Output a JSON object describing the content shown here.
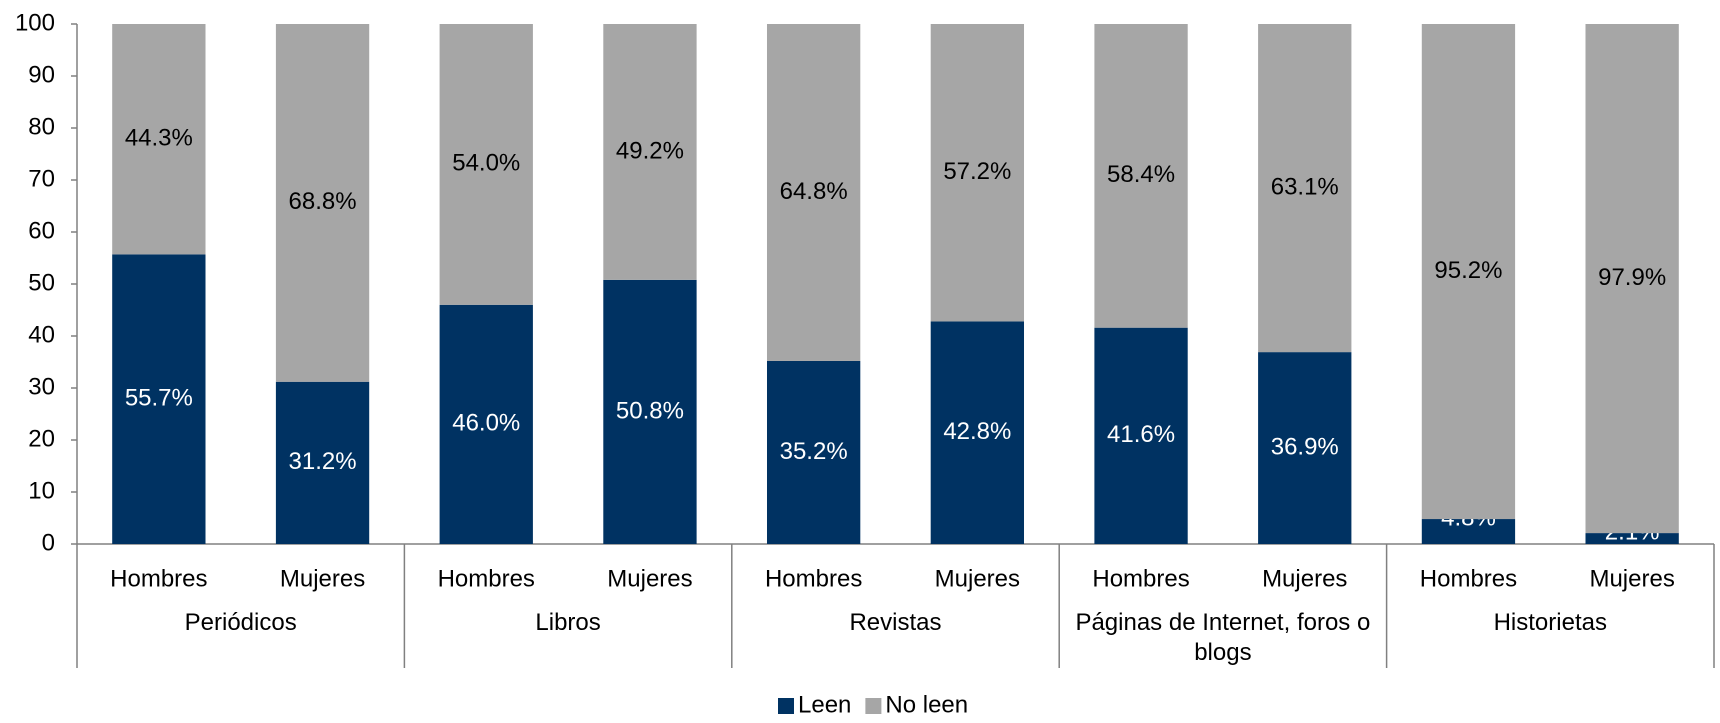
{
  "chart_data": {
    "type": "stacked_bar",
    "categories": [
      "Hombres",
      "Mujeres",
      "Hombres",
      "Mujeres",
      "Hombres",
      "Mujeres",
      "Hombres",
      "Mujeres",
      "Hombres",
      "Mujeres"
    ],
    "groups": [
      "Periódicos",
      "Libros",
      "Revistas",
      "Páginas de Internet, foros o blogs",
      "Historietas"
    ],
    "series": [
      {
        "name": "Leen",
        "color": "#003262",
        "label_color": "#ffffff",
        "values": [
          55.7,
          31.2,
          46.0,
          50.8,
          35.2,
          42.8,
          41.6,
          36.9,
          4.8,
          2.1
        ],
        "value_labels": [
          "55.7%",
          "31.2%",
          "46.0%",
          "50.8%",
          "35.2%",
          "42.8%",
          "41.6%",
          "36.9%",
          "4.8%",
          "2.1%"
        ]
      },
      {
        "name": "No leen",
        "color": "#a6a6a6",
        "label_color": "#000000",
        "values": [
          44.3,
          68.8,
          54.0,
          49.2,
          64.8,
          57.2,
          58.4,
          63.1,
          95.2,
          97.9
        ],
        "value_labels": [
          "44.3%",
          "68.8%",
          "54.0%",
          "49.2%",
          "64.8%",
          "57.2%",
          "58.4%",
          "63.1%",
          "95.2%",
          "97.9%"
        ]
      }
    ],
    "ylim": [
      0,
      100
    ],
    "yticks": [
      0,
      10,
      20,
      30,
      40,
      50,
      60,
      70,
      80,
      90,
      100
    ],
    "legend": "bottom"
  }
}
